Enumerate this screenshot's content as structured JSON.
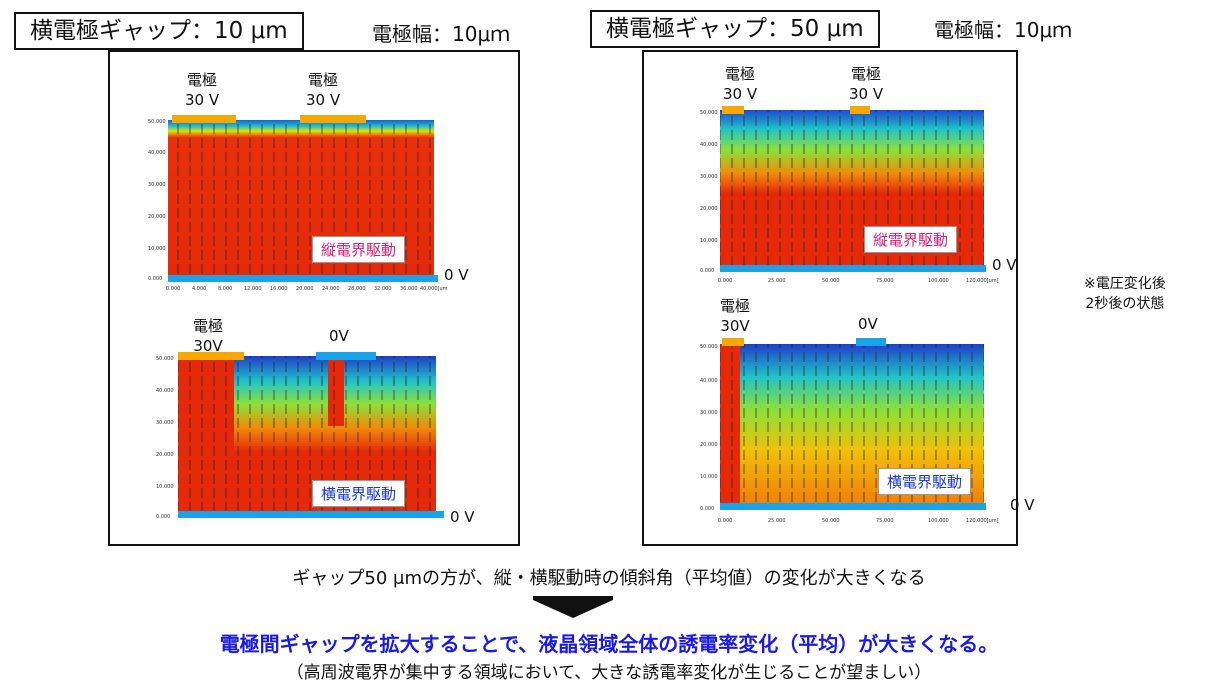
{
  "left": {
    "title": "横電極ギャップ：10 μm",
    "width": "電極幅：10μｍ",
    "top_sim": {
      "elec1": "電極\n30 V",
      "elec2": "電極\n30 V",
      "mode": "縦電界駆動",
      "ground": "0 V"
    },
    "bottom_sim": {
      "elec1": "電極\n30V",
      "elec2": "0V",
      "mode": "横電界駆動",
      "ground": "0 V"
    },
    "yticks": [
      "50.000",
      "40.000",
      "30.000",
      "20.000",
      "10.000",
      "0.000"
    ],
    "xticks_top": [
      "0.000",
      "4.000",
      "8.000",
      "12.000",
      "16.000",
      "20.000",
      "24.000",
      "28.000",
      "32.000",
      "36.000",
      "40.000[um]"
    ]
  },
  "right": {
    "title": "横電極ギャップ：50 μm",
    "width": "電極幅：10μｍ",
    "top_sim": {
      "elec1": "電極\n30 V",
      "elec2": "電極\n30 V",
      "mode": "縦電界駆動",
      "ground": "0 V"
    },
    "bottom_sim": {
      "elec1": "電極\n30V",
      "elec2": "0V",
      "mode": "横電界駆動",
      "ground": "0 V"
    },
    "xticks": [
      "0.000",
      "25.000",
      "50.000",
      "75.000",
      "100.000",
      "120.000[um]"
    ]
  },
  "note": "※電圧変化後\n2秒後の状態",
  "summary": "ギャップ50 μmの方が、縦・横駆動時の傾斜角（平均値）の変化が大きくなる",
  "conclusion": "電極間ギャップを拡大することで、液晶領域全体の誘電率変化（平均）が大きくなる。",
  "subnote": "（高周波電界が集中する領域において、大きな誘電率変化が生じることが望ましい）",
  "colors": {
    "electrode_30v": "#f5a800",
    "electrode_0v": "#1aa3e8",
    "conclusion": "#1a1ae6"
  }
}
